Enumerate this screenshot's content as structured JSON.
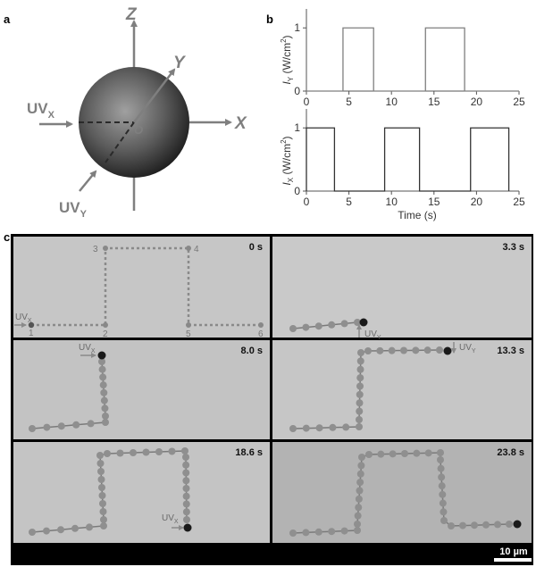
{
  "panel_labels": {
    "a": "a",
    "b": "b",
    "c": "c"
  },
  "panel_a": {
    "axis_z": "Z",
    "axis_y": "Y",
    "axis_x": "X",
    "origin": "O",
    "uv_x": {
      "main": "UV",
      "sub": "X"
    },
    "uv_y": {
      "main": "UV",
      "sub": "Y"
    },
    "colors": {
      "axis": "#7f7f7f",
      "sphere_light": "#9a9a9a",
      "sphere_dark": "#1e1e1e"
    }
  },
  "panel_b": {
    "top": {
      "ylabel_var": "I",
      "ylabel_sub": "Y",
      "ylabel_unit": " (W/cm",
      "ylabel_sup": "2",
      "ylabel_close": ")"
    },
    "bottom": {
      "ylabel_var": "I",
      "ylabel_sub": "X",
      "ylabel_unit": " (W/cm",
      "ylabel_sup": "2",
      "ylabel_close": ")"
    },
    "xlabel": "Time (s)"
  },
  "chart_data": [
    {
      "type": "line",
      "series": [
        {
          "x": [
            0,
            4.3,
            4.3,
            7.9,
            7.9,
            14.0,
            14.0,
            18.6,
            18.6,
            25
          ],
          "y": [
            0,
            0,
            1,
            1,
            0,
            0,
            1,
            1,
            0,
            0
          ]
        }
      ],
      "xlim": [
        0,
        25
      ],
      "ylim": [
        0,
        1.3
      ],
      "xticks": [
        "0",
        "5",
        "10",
        "15",
        "20",
        "25"
      ],
      "yticks": [
        "0",
        "1"
      ],
      "xtick_values": [
        0,
        5,
        10,
        15,
        20,
        25
      ],
      "ytick_values": [
        0,
        1
      ],
      "color": "#7f7f7f"
    },
    {
      "type": "line",
      "series": [
        {
          "x": [
            0,
            0,
            3.3,
            3.3,
            9.2,
            9.2,
            13.3,
            13.3,
            19.3,
            19.3,
            23.8,
            23.8
          ],
          "y": [
            0,
            1,
            1,
            0,
            0,
            1,
            1,
            0,
            0,
            1,
            1,
            0
          ]
        }
      ],
      "xlim": [
        0,
        25
      ],
      "ylim": [
        0,
        1.3
      ],
      "xticks": [
        "0",
        "5",
        "10",
        "15",
        "20",
        "25"
      ],
      "yticks": [
        "0",
        "1"
      ],
      "xtick_values": [
        0,
        5,
        10,
        15,
        20,
        25
      ],
      "ytick_values": [
        0,
        1
      ],
      "color": "#333333"
    }
  ],
  "panel_c": {
    "frames": [
      {
        "time": "0 s",
        "waypoints": [
          "1",
          "2",
          "3",
          "4",
          "5",
          "6"
        ],
        "uv": {
          "main": "UV",
          "sub": "X"
        }
      },
      {
        "time": "3.3 s",
        "uv": {
          "main": "UV",
          "sub": "Y"
        }
      },
      {
        "time": "8.0 s",
        "uv": {
          "main": "UV",
          "sub": "X"
        }
      },
      {
        "time": "13.3 s",
        "uv": {
          "main": "UV",
          "sub": "Y"
        }
      },
      {
        "time": "18.6 s",
        "uv": {
          "main": "UV",
          "sub": "X"
        }
      },
      {
        "time": "23.8 s"
      }
    ],
    "scale_bar": "10 µm",
    "colors": {
      "frame_bg": "#c4c4c4",
      "frame_bg_dark": "#b5b5b5",
      "bead": "#8f8f8f",
      "particle": "#1a1a1a"
    }
  }
}
